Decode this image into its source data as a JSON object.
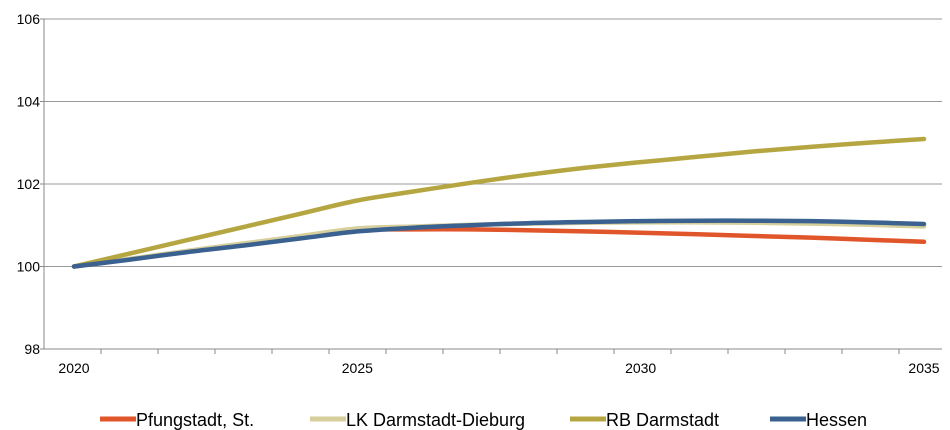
{
  "chart_data": {
    "type": "line",
    "title": "",
    "xlabel": "",
    "ylabel": "",
    "x": [
      2020,
      2021,
      2022,
      2023,
      2024,
      2025,
      2026,
      2027,
      2028,
      2029,
      2030,
      2031,
      2032,
      2033,
      2034,
      2035
    ],
    "xticks": [
      "2020",
      "2025",
      "2030",
      "2035"
    ],
    "yticks": [
      "98",
      "100",
      "102",
      "104",
      "106"
    ],
    "ylim": [
      98,
      106
    ],
    "xlim": [
      2020,
      2035
    ],
    "grid": "horizontal",
    "legend_position": "bottom",
    "series": [
      {
        "name": "Pfungstadt, St.",
        "color": "#e0552a",
        "values": [
          100.0,
          100.18,
          100.36,
          100.53,
          100.7,
          100.88,
          100.9,
          100.9,
          100.88,
          100.85,
          100.82,
          100.78,
          100.74,
          100.7,
          100.65,
          100.6
        ]
      },
      {
        "name": "LK Darmstadt-Dieburg",
        "color": "#d6cf9c",
        "values": [
          100.0,
          100.19,
          100.38,
          100.56,
          100.74,
          100.92,
          100.97,
          101.01,
          101.04,
          101.06,
          101.07,
          101.07,
          101.06,
          101.04,
          101.01,
          100.97
        ]
      },
      {
        "name": "RB Darmstadt",
        "color": "#b5a642",
        "values": [
          100.0,
          100.32,
          100.64,
          100.96,
          101.28,
          101.6,
          101.82,
          102.03,
          102.22,
          102.39,
          102.53,
          102.66,
          102.79,
          102.9,
          103.0,
          103.09
        ]
      },
      {
        "name": "Hessen",
        "color": "#3a6190",
        "values": [
          100.0,
          100.17,
          100.35,
          100.51,
          100.68,
          100.85,
          100.94,
          101.0,
          101.05,
          101.08,
          101.1,
          101.11,
          101.11,
          101.1,
          101.07,
          101.03
        ]
      }
    ]
  }
}
